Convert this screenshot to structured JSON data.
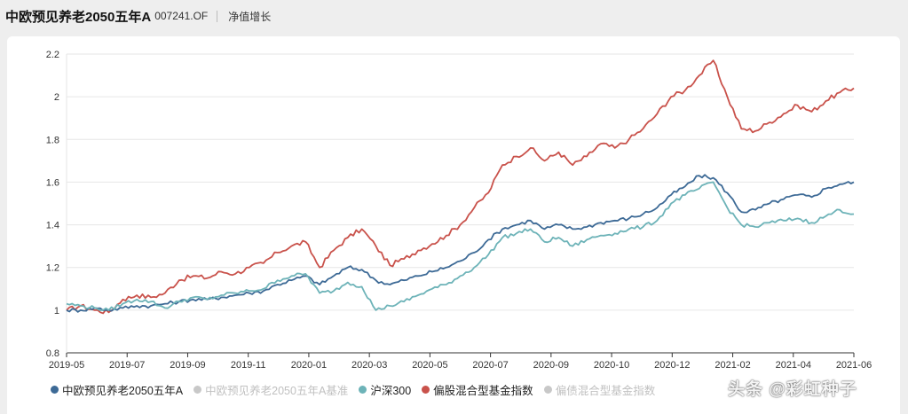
{
  "header": {
    "fund_name": "中欧预见养老2050五年A",
    "fund_code": "007241.OF",
    "metric": "净值增长"
  },
  "watermark": "头条 @彩虹种子",
  "chart_data": {
    "type": "line",
    "title": "",
    "xlabel": "",
    "ylabel": "",
    "ylim": [
      0.8,
      2.2
    ],
    "yticks": [
      "0.8",
      "1",
      "1.2",
      "1.4",
      "1.6",
      "1.8",
      "2",
      "2.2"
    ],
    "xticks": [
      "2019-05",
      "2019-07",
      "2019-09",
      "2019-11",
      "2020-01",
      "2020-03",
      "2020-05",
      "2020-07",
      "2020-09",
      "2020-10",
      "2020-12",
      "2021-02",
      "2021-04",
      "2021-06"
    ],
    "grid": "horizontal",
    "legend_position": "bottom",
    "legend": [
      {
        "name": "中欧预见养老2050五年A",
        "color": "#3d6a96",
        "visible": true
      },
      {
        "name": "中欧预见养老2050五年A基准",
        "color": "#c8c8c8",
        "visible": false
      },
      {
        "name": "沪深300",
        "color": "#6db3b8",
        "visible": true
      },
      {
        "name": "偏股混合型基金指数",
        "color": "#c9524b",
        "visible": true
      },
      {
        "name": "偏债混合型基金指数",
        "color": "#c8c8c8",
        "visible": false
      }
    ],
    "series": [
      {
        "name": "偏股混合型基金指数",
        "color": "#c9524b",
        "values": [
          1.0,
          1.02,
          1.0,
          0.99,
          1.05,
          1.07,
          1.06,
          1.08,
          1.14,
          1.16,
          1.15,
          1.18,
          1.17,
          1.2,
          1.22,
          1.27,
          1.3,
          1.32,
          1.2,
          1.28,
          1.34,
          1.38,
          1.3,
          1.21,
          1.24,
          1.28,
          1.31,
          1.35,
          1.4,
          1.48,
          1.55,
          1.68,
          1.72,
          1.76,
          1.7,
          1.74,
          1.68,
          1.72,
          1.78,
          1.76,
          1.8,
          1.85,
          1.92,
          2.0,
          2.03,
          2.1,
          2.17,
          2.0,
          1.85,
          1.84,
          1.88,
          1.92,
          1.96,
          1.93,
          1.98,
          2.02,
          2.04
        ]
      },
      {
        "name": "中欧预见养老2050五年A",
        "color": "#3d6a96",
        "values": [
          1.0,
          1.0,
          1.01,
          1.0,
          1.01,
          1.02,
          1.02,
          1.03,
          1.04,
          1.05,
          1.05,
          1.06,
          1.07,
          1.08,
          1.09,
          1.12,
          1.14,
          1.16,
          1.12,
          1.16,
          1.2,
          1.19,
          1.14,
          1.12,
          1.14,
          1.16,
          1.18,
          1.2,
          1.23,
          1.27,
          1.33,
          1.38,
          1.4,
          1.42,
          1.38,
          1.4,
          1.38,
          1.39,
          1.41,
          1.42,
          1.43,
          1.45,
          1.48,
          1.54,
          1.58,
          1.63,
          1.62,
          1.55,
          1.46,
          1.47,
          1.5,
          1.52,
          1.54,
          1.53,
          1.57,
          1.59,
          1.6
        ]
      },
      {
        "name": "沪深300",
        "color": "#6db3b8",
        "values": [
          1.03,
          1.02,
          1.01,
          1.0,
          1.03,
          1.05,
          1.04,
          1.01,
          1.04,
          1.06,
          1.05,
          1.07,
          1.08,
          1.09,
          1.1,
          1.14,
          1.16,
          1.17,
          1.08,
          1.09,
          1.13,
          1.11,
          1.0,
          1.02,
          1.04,
          1.07,
          1.1,
          1.12,
          1.16,
          1.2,
          1.26,
          1.34,
          1.36,
          1.38,
          1.32,
          1.34,
          1.3,
          1.33,
          1.35,
          1.36,
          1.38,
          1.39,
          1.42,
          1.5,
          1.54,
          1.57,
          1.6,
          1.48,
          1.4,
          1.39,
          1.41,
          1.42,
          1.43,
          1.41,
          1.44,
          1.47,
          1.45
        ]
      }
    ]
  }
}
